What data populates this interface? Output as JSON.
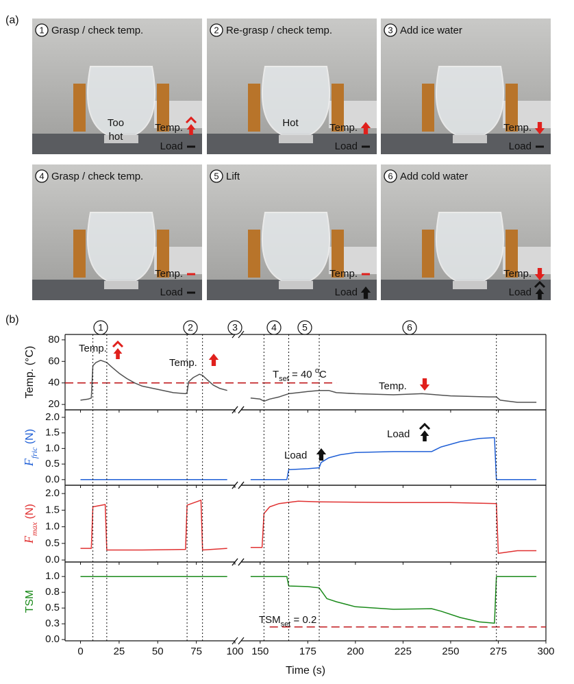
{
  "panel_a": {
    "label": "(a)",
    "panels": [
      {
        "number": "1",
        "caption": "Grasp / check temp.",
        "state": [
          "Too",
          "hot"
        ],
        "temp": "Temp.",
        "load": "Load"
      },
      {
        "number": "2",
        "caption": "Re-grasp /  check temp.",
        "state": [
          "Hot"
        ],
        "temp": "Temp.",
        "load": "Load"
      },
      {
        "number": "3",
        "caption": "Add ice water",
        "temp": "Temp.",
        "load": "Load"
      },
      {
        "number": "4",
        "caption": "Grasp / check temp.",
        "temp": "Temp.",
        "load": "Load"
      },
      {
        "number": "5",
        "caption": "Lift",
        "temp": "Temp.",
        "load": "Load"
      },
      {
        "number": "6",
        "caption": "Add cold water",
        "temp": "Temp.",
        "load": "Load"
      }
    ]
  },
  "panel_b_label": "(b)",
  "stages": [
    "1",
    "2",
    "3",
    "4",
    "5",
    "6"
  ],
  "chart_data": [
    {
      "type": "line",
      "ylabel": [
        "Temp. (°C)"
      ],
      "ylim": [
        15,
        85
      ],
      "yticks": [
        20,
        40,
        60,
        80
      ],
      "x": [
        0,
        5,
        7,
        8,
        10,
        13,
        17,
        20,
        25,
        30,
        35,
        40,
        50,
        60,
        68,
        69,
        70,
        73,
        77,
        79,
        82,
        86,
        90,
        95,
        null,
        145,
        150,
        152,
        155,
        160,
        165,
        170,
        175,
        181,
        186,
        190,
        200,
        220,
        235,
        250,
        270,
        274,
        276,
        285,
        295
      ],
      "series": [
        {
          "color": "#505050",
          "values": [
            24,
            25,
            26,
            56,
            59,
            61,
            59,
            55,
            49,
            44,
            40,
            37,
            34,
            31,
            30,
            31,
            41,
            45,
            48,
            47,
            43,
            38,
            35,
            33,
            null,
            26,
            25,
            23,
            25,
            27,
            30,
            31,
            32,
            33,
            33,
            31,
            30,
            29,
            30,
            28,
            27,
            27,
            24,
            22,
            22
          ]
        }
      ],
      "events": [
        8,
        17,
        69,
        79,
        152,
        165,
        181,
        274
      ],
      "reference": {
        "value": 40,
        "x": [
          -10,
          190
        ],
        "color": "#c0181c",
        "label": [
          "T",
          "set",
          " = 40 ",
          "o",
          "C"
        ]
      },
      "annotations": [
        "Temp.",
        "Temp.",
        "Temp."
      ]
    },
    {
      "type": "line",
      "ylabel": [
        "F",
        "fric",
        " (N)"
      ],
      "ylabel_color": "#1f5fd6",
      "ylim": [
        -0.18,
        2.24
      ],
      "yticks": [
        {
          "value": 0,
          "label": "0.0"
        },
        0.5,
        {
          "value": 1,
          "label": "1.0"
        },
        1.5,
        {
          "value": 2,
          "label": "2.0"
        }
      ],
      "x": [
        0,
        95,
        null,
        145,
        164,
        165,
        175,
        181,
        182,
        186,
        192,
        200,
        220,
        240,
        245,
        255,
        265,
        273,
        274,
        295
      ],
      "series": [
        {
          "color": "#1f5fd6",
          "values": [
            0,
            0,
            null,
            0,
            0,
            0.32,
            0.35,
            0.38,
            0.55,
            0.7,
            0.8,
            0.87,
            0.9,
            0.9,
            1.05,
            1.22,
            1.32,
            1.35,
            0,
            0
          ]
        }
      ],
      "annotations": [
        "Load",
        "Load"
      ]
    },
    {
      "type": "line",
      "ylabel": [
        "F",
        "max",
        " (N)"
      ],
      "ylabel_color": "#e03030",
      "ylim": [
        -0.06,
        2.25
      ],
      "yticks": [
        {
          "value": 0,
          "label": "0.0"
        },
        0.5,
        {
          "value": 1,
          "label": "1.0"
        },
        1.5,
        {
          "value": 2,
          "label": "2.0"
        }
      ],
      "x": [
        0,
        7,
        8,
        16,
        17,
        40,
        68,
        69,
        78,
        79,
        95,
        null,
        145,
        151,
        152,
        155,
        160,
        170,
        181,
        200,
        220,
        250,
        274,
        275,
        285,
        295
      ],
      "series": [
        {
          "color": "#e03030",
          "values": [
            0.35,
            0.35,
            1.6,
            1.67,
            0.3,
            0.3,
            0.32,
            1.65,
            1.8,
            0.3,
            0.35,
            null,
            0.38,
            0.38,
            1.4,
            1.6,
            1.7,
            1.77,
            1.75,
            1.74,
            1.73,
            1.73,
            1.7,
            0.2,
            0.28,
            0.28
          ]
        }
      ]
    },
    {
      "type": "line",
      "ylabel": [
        "TSM"
      ],
      "ylabel_color": "#1a8a1a",
      "ylim": [
        -0.02,
        1.23
      ],
      "yticks": [
        {
          "value": 0,
          "label": "0.0"
        },
        {
          "value": 0.25,
          "label": "0.3"
        },
        0.5,
        {
          "value": 0.75,
          "label": "0.8"
        },
        {
          "value": 1,
          "label": "1.0"
        }
      ],
      "x": [
        0,
        95,
        null,
        145,
        164,
        165,
        175,
        181,
        185,
        190,
        200,
        220,
        240,
        245,
        255,
        265,
        273,
        274,
        295
      ],
      "series": [
        {
          "color": "#1a8a1a",
          "values": [
            1,
            1,
            null,
            1,
            1,
            0.85,
            0.84,
            0.82,
            0.65,
            0.6,
            0.52,
            0.48,
            0.49,
            0.45,
            0.35,
            0.28,
            0.26,
            1,
            1
          ]
        }
      ],
      "reference": {
        "value": 0.2,
        "x": [
          155,
          300
        ],
        "color": "#c0181c",
        "label": [
          "TSM",
          "set",
          " = 0.2"
        ]
      },
      "xlabel": "Time (s)",
      "x_segments": [
        [
          -10,
          100
        ],
        [
          140,
          300
        ]
      ],
      "xticks": [
        0,
        25,
        50,
        75,
        100,
        150,
        175,
        200,
        225,
        250,
        275,
        300
      ]
    }
  ]
}
